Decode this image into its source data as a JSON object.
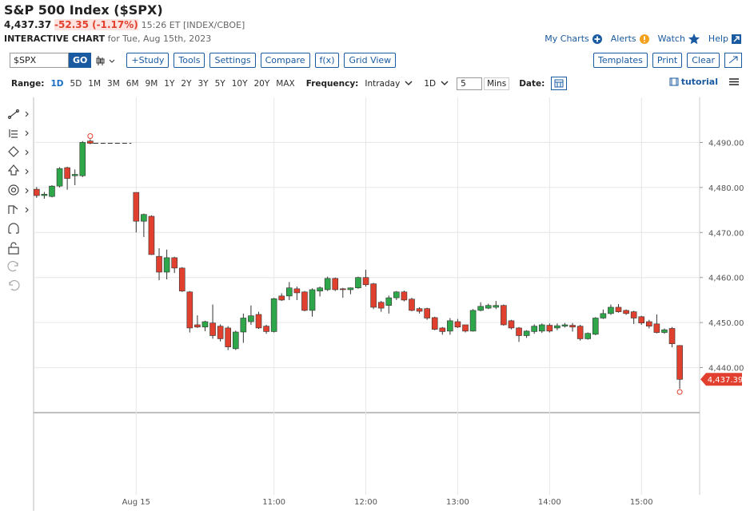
{
  "header": {
    "title": "S&P 500 Index ($SPX)",
    "price": "4,437.37",
    "change": "-52.35 (-1.17%)",
    "time": "15:26 ET [INDEX/CBOE]",
    "chart_label": "INTERACTIVE CHART",
    "date": "for Tue, Aug 15th, 2023",
    "links": [
      "My Charts",
      "Alerts",
      "Watch",
      "Help"
    ]
  },
  "toolbar": {
    "symbol": "$SPX",
    "go": "GO",
    "buttons": [
      "+Study",
      "Tools",
      "Settings",
      "Compare",
      "f(x)",
      "Grid View"
    ],
    "right_buttons": [
      "Templates",
      "Print",
      "Clear"
    ]
  },
  "range_bar": {
    "range_label": "Range:",
    "ranges": [
      "1D",
      "5D",
      "1M",
      "3M",
      "6M",
      "9M",
      "1Y",
      "2Y",
      "3Y",
      "5Y",
      "10Y",
      "20Y",
      "MAX"
    ],
    "selected_range": 0,
    "frequency_label": "Frequency:",
    "frequency": "Intraday",
    "period": "1D",
    "interval": "5",
    "interval_unit": "Mins",
    "date_label": "Date:",
    "tutorial": "tutorial"
  },
  "chart_data": {
    "type": "candlestick",
    "up_color": "#2ea64a",
    "down_color": "#e2402e",
    "grid": true,
    "x": [
      -65,
      -60,
      -55,
      -50,
      -45,
      -40,
      -35,
      -30,
      0,
      5,
      10,
      15,
      20,
      25,
      30,
      35,
      40,
      45,
      50,
      55,
      60,
      65,
      70,
      75,
      80,
      85,
      90,
      95,
      100,
      105,
      110,
      115,
      120,
      125,
      130,
      135,
      140,
      145,
      150,
      155,
      160,
      165,
      170,
      175,
      180,
      185,
      190,
      195,
      200,
      205,
      210,
      215,
      220,
      225,
      230,
      235,
      240,
      245,
      250,
      255,
      260,
      265,
      270,
      275,
      280,
      285,
      290,
      295,
      300,
      305,
      310,
      315,
      320,
      325,
      330,
      335,
      340,
      345,
      350,
      355
    ],
    "open": [
      4479.6,
      4478.2,
      4478.0,
      4480.3,
      4484.4,
      4482.6,
      4482.6,
      4490.3,
      4478.9,
      4472.5,
      4473.6,
      4464.7,
      4461.2,
      4464.4,
      4462.1,
      4456.8,
      4449.5,
      4449.0,
      4449.9,
      4449.2,
      4448.8,
      4444.2,
      4447.9,
      4450.2,
      4451.8,
      4449.2,
      4448.0,
      4455.9,
      4455.9,
      4457.5,
      4456.8,
      4452.7,
      4457.0,
      4457.3,
      4459.8,
      4457.5,
      4457.3,
      4457.7,
      4460.0,
      4458.6,
      4454.5,
      4453.8,
      4455.5,
      4456.8,
      4455.2,
      4453.1,
      4453.1,
      4451.1,
      4448.8,
      4448.1,
      4450.2,
      4449.5,
      4448.1,
      4452.7,
      4453.2,
      4453.4,
      4453.8,
      4450.4,
      4448.8,
      4447.1,
      4448.0,
      4448.1,
      4449.4,
      4448.8,
      4449.2,
      4449.4,
      4449.2,
      4446.4,
      4447.4,
      4451.0,
      4452.0,
      4453.4,
      4452.7,
      4452.4,
      4451.3,
      4450.2,
      4449.7,
      4447.8,
      4448.7,
      4444.9
    ],
    "high": [
      4480.1,
      4479.0,
      4480.5,
      4484.5,
      4484.6,
      4484.0,
      4490.3,
      4490.7,
      4478.9,
      4474.2,
      4473.8,
      4466.5,
      4466.2,
      4464.6,
      4462.3,
      4457.0,
      4451.6,
      4450.4,
      4454.0,
      4449.6,
      4449.2,
      4448.2,
      4452.0,
      4453.8,
      4452.4,
      4449.5,
      4455.5,
      4456.5,
      4459.0,
      4458.0,
      4457.0,
      4457.6,
      4458.0,
      4460.2,
      4460.0,
      4457.7,
      4457.8,
      4460.2,
      4461.7,
      4458.8,
      4454.8,
      4456.0,
      4457.0,
      4457.1,
      4455.5,
      4453.4,
      4453.3,
      4451.3,
      4449.0,
      4451.0,
      4450.8,
      4449.5,
      4453.0,
      4454.5,
      4454.2,
      4454.8,
      4454.0,
      4450.6,
      4449.0,
      4448.3,
      4449.6,
      4449.8,
      4449.8,
      4449.8,
      4449.9,
      4449.9,
      4449.5,
      4447.8,
      4451.2,
      4452.9,
      4454.0,
      4454.1,
      4452.9,
      4452.6,
      4451.5,
      4450.6,
      4451.8,
      4448.7,
      4449.0,
      4445.0
    ],
    "low": [
      4477.7,
      4477.5,
      4477.8,
      4480.0,
      4479.5,
      4480.5,
      4482.3,
      4489.6,
      4470.0,
      4469.0,
      4465.0,
      4459.4,
      4459.6,
      4461.0,
      4456.8,
      4447.8,
      4448.8,
      4448.1,
      4446.4,
      4445.8,
      4443.9,
      4443.9,
      4445.5,
      4449.5,
      4448.6,
      4447.5,
      4447.8,
      4454.8,
      4455.0,
      4455.0,
      4452.5,
      4451.3,
      4455.8,
      4457.0,
      4457.0,
      4455.5,
      4456.3,
      4457.5,
      4458.0,
      4453.0,
      4452.4,
      4452.0,
      4455.0,
      4454.7,
      4452.5,
      4452.0,
      4450.6,
      4448.3,
      4447.3,
      4447.3,
      4448.8,
      4447.8,
      4448.0,
      4452.5,
      4453.0,
      4453.0,
      4449.3,
      4448.5,
      4445.7,
      4446.6,
      4447.5,
      4447.7,
      4447.8,
      4448.3,
      4448.9,
      4448.0,
      4446.0,
      4446.2,
      4447.2,
      4450.8,
      4451.7,
      4452.2,
      4451.7,
      4449.7,
      4449.5,
      4448.7,
      4447.6,
      4447.5,
      4444.5,
      4435.3
    ],
    "close": [
      4478.2,
      4478.5,
      4480.3,
      4484.2,
      4482.0,
      4482.9,
      4490.0,
      4489.8,
      4472.5,
      4474.0,
      4465.1,
      4461.2,
      4464.4,
      4462.1,
      4457.0,
      4448.8,
      4449.0,
      4450.2,
      4447.1,
      4446.4,
      4444.6,
      4447.9,
      4451.0,
      4451.5,
      4448.8,
      4448.0,
      4455.3,
      4455.0,
      4457.7,
      4456.6,
      4452.7,
      4457.3,
      4457.7,
      4459.8,
      4457.3,
      4457.3,
      4457.7,
      4460.0,
      4458.4,
      4453.4,
      4453.2,
      4455.5,
      4456.8,
      4455.0,
      4452.7,
      4452.5,
      4451.0,
      4448.5,
      4448.0,
      4450.4,
      4449.0,
      4448.1,
      4452.7,
      4453.6,
      4453.8,
      4453.8,
      4449.5,
      4448.8,
      4447.1,
      4448.1,
      4449.2,
      4449.5,
      4448.1,
      4449.3,
      4449.5,
      4449.0,
      4446.4,
      4447.6,
      4451.0,
      4452.0,
      4453.4,
      4452.4,
      4452.0,
      4451.0,
      4449.9,
      4449.2,
      4447.8,
      4448.4,
      4445.3,
      4437.39
    ],
    "xlim": [
      -67,
      368
    ],
    "xticks": [
      {
        "value": 0,
        "label": "Aug 15"
      },
      {
        "value": 90,
        "label": "11:00"
      },
      {
        "value": 150,
        "label": "12:00"
      },
      {
        "value": 210,
        "label": "13:00"
      },
      {
        "value": 270,
        "label": "14:00"
      },
      {
        "value": 330,
        "label": "15:00"
      }
    ],
    "ylim": [
      4430,
      4500
    ],
    "yticks": [
      {
        "value": 4440,
        "label": "4,440.00"
      },
      {
        "value": 4450,
        "label": "4,450.00"
      },
      {
        "value": 4460,
        "label": "4,460.00"
      },
      {
        "value": 4470,
        "label": "4,470.00"
      },
      {
        "value": 4480,
        "label": "4,480.00"
      },
      {
        "value": 4490,
        "label": "4,490.00"
      }
    ],
    "last_label": {
      "value": 4437.39,
      "label": "4,437.39"
    }
  }
}
